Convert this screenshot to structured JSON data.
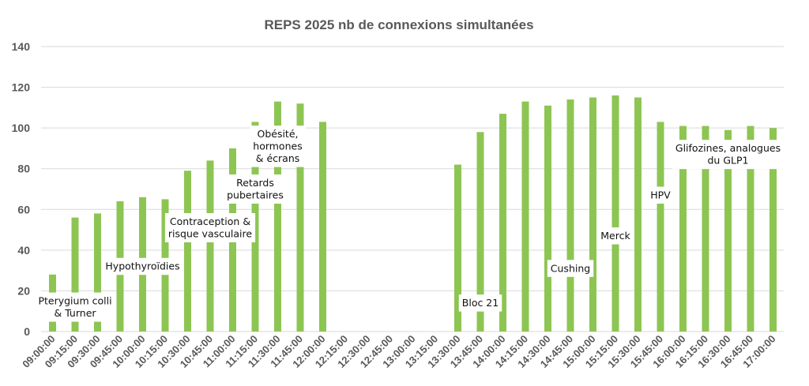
{
  "chart_data": {
    "type": "bar",
    "title": "REPS 2025 nb de connexions simultanées",
    "xlabel": "",
    "ylabel": "",
    "ylim": [
      0,
      140
    ],
    "yticks": [
      0,
      20,
      40,
      60,
      80,
      100,
      120,
      140
    ],
    "grid": true,
    "legend": "none",
    "bar_color": "#8dc553",
    "categories": [
      "09:00:00",
      "09:15:00",
      "09:30:00",
      "09:45:00",
      "10:00:00",
      "10:15:00",
      "10:30:00",
      "10:45:00",
      "11:00:00",
      "11:15:00",
      "11:30:00",
      "11:45:00",
      "12:00:00",
      "12:15:00",
      "12:30:00",
      "12:45:00",
      "13:00:00",
      "13:15:00",
      "13:30:00",
      "13:45:00",
      "14:00:00",
      "14:15:00",
      "14:30:00",
      "14:45:00",
      "15:00:00",
      "15:15:00",
      "15:30:00",
      "15:45:00",
      "16:00:00",
      "16:15:00",
      "16:30:00",
      "16:45:00",
      "17:00:00"
    ],
    "values": [
      28,
      56,
      58,
      64,
      66,
      65,
      79,
      84,
      90,
      103,
      113,
      112,
      103,
      0,
      0,
      0,
      0,
      0,
      82,
      98,
      107,
      113,
      111,
      114,
      115,
      116,
      115,
      103,
      101,
      101,
      99,
      101,
      100
    ],
    "annotations": [
      {
        "lines": [
          "Pterygium colli",
          "& Turner"
        ],
        "category": "09:15:00",
        "y": 12
      },
      {
        "lines": [
          "Hypothyroïdies"
        ],
        "category": "10:00:00",
        "y": 32
      },
      {
        "lines": [
          "Contraception &",
          "risque vasculaire"
        ],
        "category": "10:45:00",
        "y": 51
      },
      {
        "lines": [
          "Retards",
          "pubertaires"
        ],
        "category": "11:15:00",
        "y": 70
      },
      {
        "lines": [
          "Obésité,",
          "hormones",
          "& écrans"
        ],
        "category": "11:30:00",
        "y": 91
      },
      {
        "lines": [
          "Bloc 21"
        ],
        "category": "13:45:00",
        "y": 14
      },
      {
        "lines": [
          "Cushing"
        ],
        "category": "14:45:00",
        "y": 31
      },
      {
        "lines": [
          "Merck"
        ],
        "category": "15:15:00",
        "y": 47
      },
      {
        "lines": [
          "HPV"
        ],
        "category": "15:45:00",
        "y": 67
      },
      {
        "lines": [
          "Glifozines, analogues",
          "du GLP1"
        ],
        "category": "16:30:00",
        "y": 87
      }
    ]
  }
}
